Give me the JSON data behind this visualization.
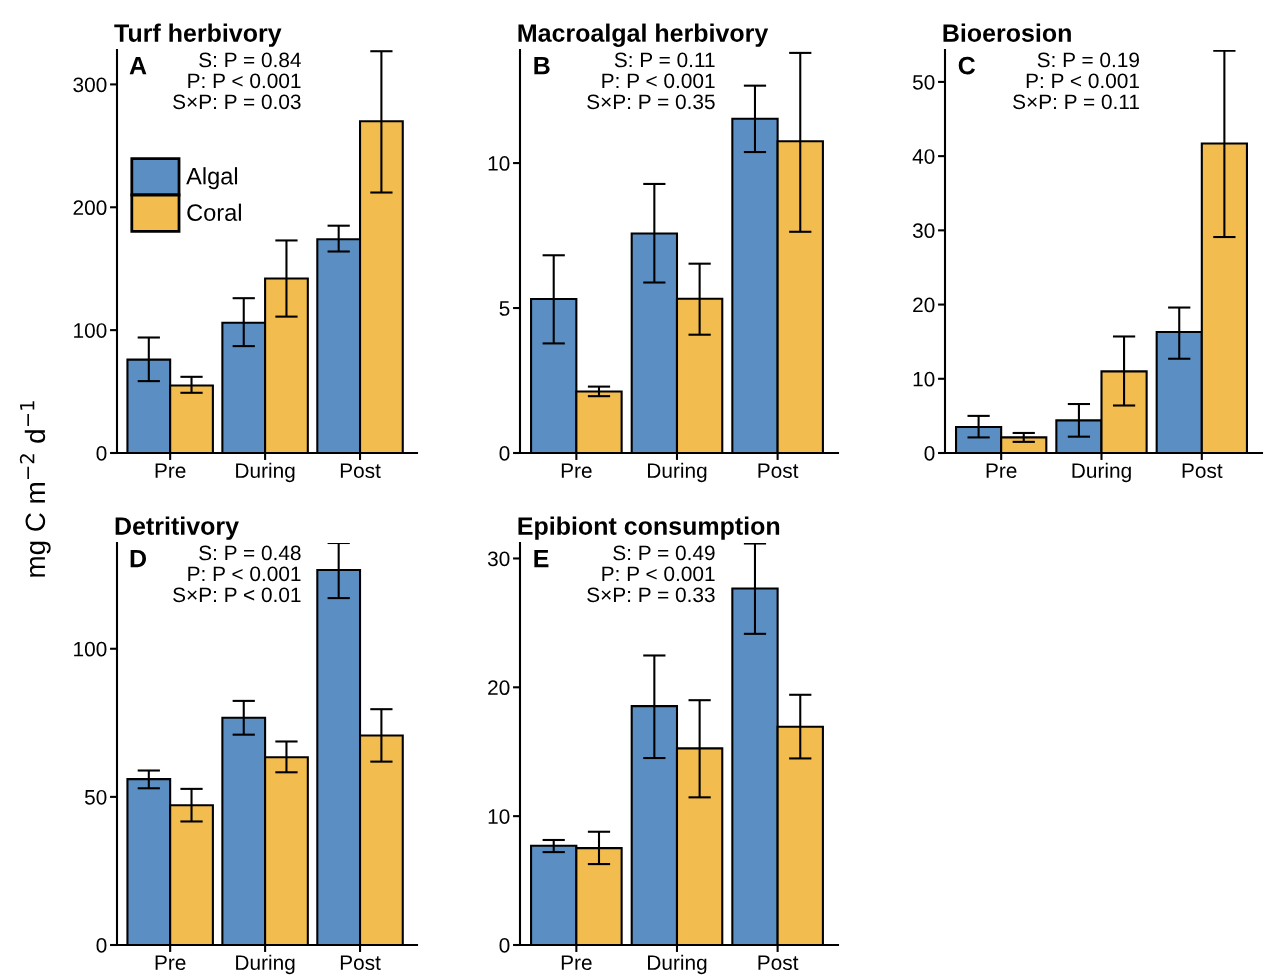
{
  "chart_data": [
    {
      "type": "bar",
      "title": "Turf herbivory",
      "ylabel": "mg C m$^{−2}$ d$^{−1}$",
      "categories": [
        "Pre",
        "During",
        "Post"
      ],
      "ylim": [
        0,
        328
      ],
      "yticks": [
        0,
        100,
        200,
        300
      ],
      "legend": "top left",
      "annotations": [
        "A",
        "S: P = 0.84",
        "P: P < 0.001",
        "S×P: P = 0.03"
      ],
      "series": [
        {
          "name": "Algal",
          "color": "#5b8fc3",
          "values": [
            76,
            106,
            174
          ],
          "errors": [
            [
              58.5,
              94
            ],
            [
              87,
              126
            ],
            [
              164,
              185
            ]
          ]
        },
        {
          "name": "Coral",
          "color": "#f2bc4e",
          "values": [
            55,
            142,
            270
          ],
          "errors": [
            [
              49,
              62
            ],
            [
              111,
              173
            ],
            [
              212,
              327
            ]
          ]
        }
      ]
    },
    {
      "type": "bar",
      "title": "Macroalgal herbivory",
      "categories": [
        "Pre",
        "During",
        "Post"
      ],
      "ylim": [
        0,
        13.9
      ],
      "yticks": [
        0,
        5,
        10
      ],
      "annotations": [
        "B",
        "S: P = 0.11",
        "P: P < 0.001",
        "S×P: P = 0.35"
      ],
      "series": [
        {
          "color": "#5b8fc3",
          "values": [
            5.31,
            7.57,
            11.53
          ],
          "errors": [
            [
              3.78,
              6.82
            ],
            [
              5.88,
              9.28
            ],
            [
              10.38,
              12.67
            ]
          ]
        },
        {
          "color": "#f2bc4e",
          "values": [
            2.12,
            5.32,
            10.75
          ],
          "errors": [
            [
              1.96,
              2.29
            ],
            [
              4.08,
              6.53
            ],
            [
              7.63,
              13.8
            ]
          ]
        }
      ]
    },
    {
      "type": "bar",
      "title": "Bioerosion",
      "categories": [
        "Pre",
        "During",
        "Post"
      ],
      "ylim": [
        0,
        54.3
      ],
      "yticks": [
        0,
        10,
        20,
        30,
        40,
        50
      ],
      "annotations": [
        "C",
        "S: P = 0.19",
        "P: P < 0.001",
        "S×P: P = 0.11"
      ],
      "series": [
        {
          "color": "#5b8fc3",
          "values": [
            3.5,
            4.4,
            16.3
          ],
          "errors": [
            [
              2.1,
              5.0
            ],
            [
              2.2,
              6.6
            ],
            [
              12.7,
              19.6
            ]
          ]
        },
        {
          "color": "#f2bc4e",
          "values": [
            2.1,
            11.0,
            41.7
          ],
          "errors": [
            [
              1.5,
              2.7
            ],
            [
              6.4,
              15.7
            ],
            [
              29.1,
              54.2
            ]
          ]
        }
      ]
    },
    {
      "type": "bar",
      "title": "Detritivory",
      "categories": [
        "Pre",
        "During",
        "Post"
      ],
      "ylim": [
        0,
        135.7
      ],
      "yticks": [
        0,
        50,
        100
      ],
      "annotations": [
        "D",
        "S: P = 0.48",
        "P: P < 0.001",
        "S×P: P < 0.01"
      ],
      "series": [
        {
          "color": "#5b8fc3",
          "values": [
            56,
            76.7,
            126.6
          ],
          "errors": [
            [
              52.9,
              58.9
            ],
            [
              71,
              82.4
            ],
            [
              117.1,
              135.7
            ]
          ]
        },
        {
          "color": "#f2bc4e",
          "values": [
            47.2,
            63.4,
            70.7
          ],
          "errors": [
            [
              41.7,
              52.7
            ],
            [
              58.3,
              68.7
            ],
            [
              61.9,
              79.6
            ]
          ]
        }
      ]
    },
    {
      "type": "bar",
      "title": "Epibiont consumption",
      "categories": [
        "Pre",
        "During",
        "Post"
      ],
      "ylim": [
        0,
        31.2
      ],
      "yticks": [
        0,
        10,
        20,
        30
      ],
      "annotations": [
        "E",
        "S: P = 0.49",
        "P: P < 0.001",
        "S×P: P = 0.33"
      ],
      "series": [
        {
          "color": "#5b8fc3",
          "values": [
            7.7,
            18.54,
            27.67
          ],
          "errors": [
            [
              7.21,
              8.15
            ],
            [
              14.51,
              22.47
            ],
            [
              24.15,
              31.16
            ]
          ]
        },
        {
          "color": "#f2bc4e",
          "values": [
            7.52,
            15.26,
            16.94
          ],
          "errors": [
            [
              6.28,
              8.79
            ],
            [
              11.46,
              19.0
            ],
            [
              14.48,
              19.42
            ]
          ]
        }
      ]
    }
  ]
}
